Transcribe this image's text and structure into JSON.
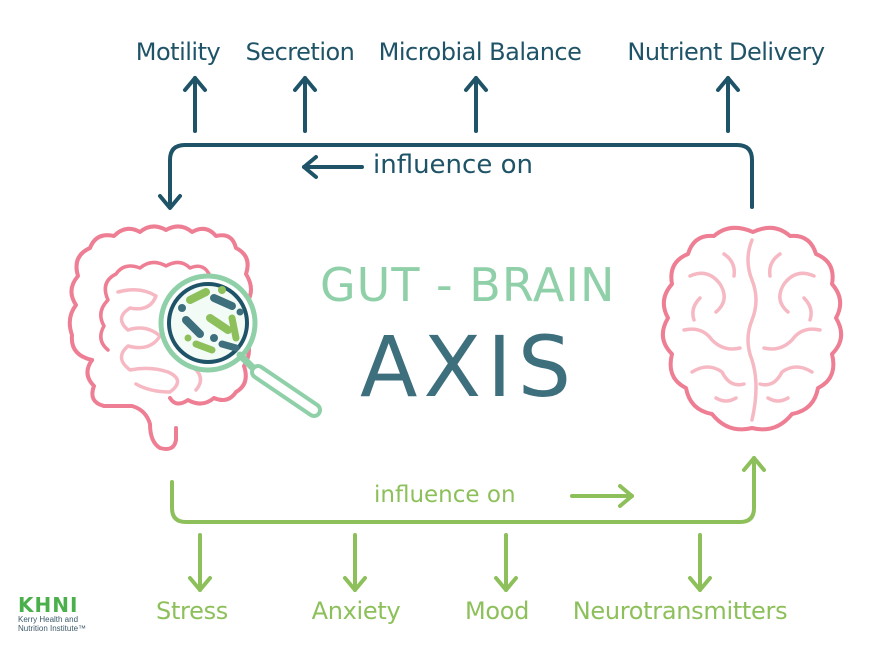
{
  "title": {
    "line1": "GUT - BRAIN",
    "line2": "AXIS"
  },
  "top_flow": {
    "label": "influence on",
    "outputs": [
      "Motility",
      "Secretion",
      "Microbial Balance",
      "Nutrient Delivery"
    ]
  },
  "bottom_flow": {
    "label": "influence on",
    "outputs": [
      "Stress",
      "Anxiety",
      "Mood",
      "Neurotransmitters"
    ]
  },
  "logo": {
    "mark": "KHNI",
    "line1": "Kerry Health and",
    "line2": "Nutrition Institute™"
  },
  "colors": {
    "dark_teal": "#1f5367",
    "green": "#8dc05b",
    "mint": "#8fd0a9",
    "slate": "#3e6f7d",
    "pink": "#ee7e93",
    "light_pink": "#f6b9c3",
    "logo_green": "#4bb04c"
  },
  "icons": [
    "intestines-icon",
    "magnifier-icon",
    "bacteria-icon",
    "brain-icon"
  ]
}
